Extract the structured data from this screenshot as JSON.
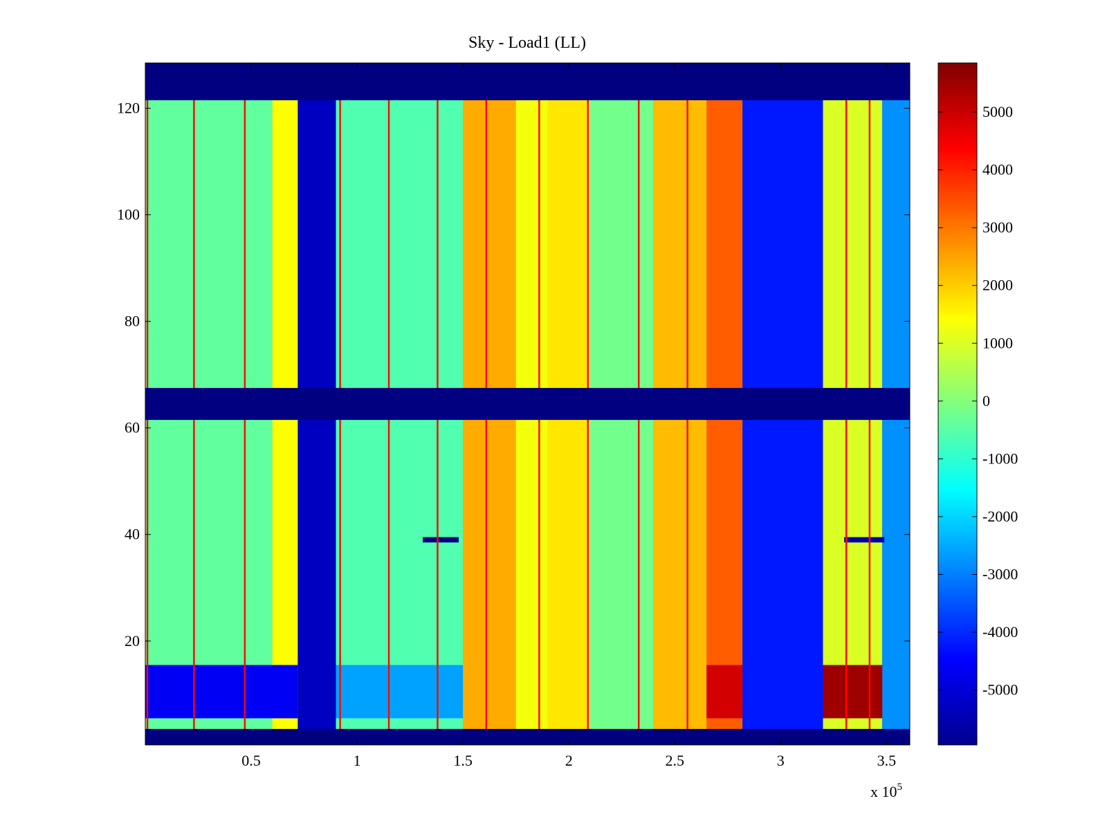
{
  "chart_data": {
    "type": "heatmap",
    "title": "Sky - Load1 (LL)",
    "xlabel": "",
    "ylabel": "",
    "x_range": [
      0,
      361000
    ],
    "y_range": [
      0.5,
      128.5
    ],
    "x_exponent_label": "x 10",
    "x_exponent_power": "5",
    "x_ticks": [
      {
        "value": 50000,
        "label": "0.5"
      },
      {
        "value": 100000,
        "label": "1"
      },
      {
        "value": 150000,
        "label": "1.5"
      },
      {
        "value": 200000,
        "label": "2"
      },
      {
        "value": 250000,
        "label": "2.5"
      },
      {
        "value": 300000,
        "label": "3"
      },
      {
        "value": 350000,
        "label": "3.5"
      }
    ],
    "y_ticks": [
      {
        "value": 20,
        "label": "20"
      },
      {
        "value": 40,
        "label": "40"
      },
      {
        "value": 60,
        "label": "60"
      },
      {
        "value": 80,
        "label": "80"
      },
      {
        "value": 100,
        "label": "100"
      },
      {
        "value": 120,
        "label": "120"
      }
    ],
    "colorbar": {
      "colormap": "jet",
      "range": [
        -5950,
        5850
      ],
      "ticks": [
        {
          "value": 5000,
          "label": "5000"
        },
        {
          "value": 4000,
          "label": "4000"
        },
        {
          "value": 3000,
          "label": "3000"
        },
        {
          "value": 2000,
          "label": "2000"
        },
        {
          "value": 1000,
          "label": "1000"
        },
        {
          "value": 0,
          "label": "0"
        },
        {
          "value": -1000,
          "label": "-1000"
        },
        {
          "value": -2000,
          "label": "-2000"
        },
        {
          "value": -3000,
          "label": "-3000"
        },
        {
          "value": -4000,
          "label": "-4000"
        },
        {
          "value": -5000,
          "label": "-5000"
        }
      ]
    },
    "masked_value": -6000,
    "masked_channel_ranges": [
      [
        0.5,
        3.5
      ],
      [
        61.5,
        67.5
      ],
      [
        121.5,
        128.5
      ]
    ],
    "column_bands": [
      {
        "x": [
          0,
          72000
        ],
        "value": -400
      },
      {
        "x": [
          60000,
          72000
        ],
        "value": 1400
      },
      {
        "x": [
          72000,
          90000
        ],
        "value": -5200
      },
      {
        "x": [
          90000,
          150000
        ],
        "value": -600
      },
      {
        "x": [
          150000,
          240000
        ],
        "value": 1300
      },
      {
        "x": [
          150000,
          175000
        ],
        "value": 2400
      },
      {
        "x": [
          190000,
          210000
        ],
        "value": 1700
      },
      {
        "x": [
          210000,
          240000
        ],
        "value": -200
      },
      {
        "x": [
          240000,
          282000
        ],
        "value": 2200
      },
      {
        "x": [
          265000,
          282000
        ],
        "value": 3300
      },
      {
        "x": [
          282000,
          320000
        ],
        "value": -4200
      },
      {
        "x": [
          320000,
          348000
        ],
        "value": 1000
      },
      {
        "x": [
          348000,
          361000
        ],
        "value": -2800
      }
    ],
    "highlight_rows": [
      {
        "y": [
          5.5,
          15.5
        ],
        "x": [
          0,
          72000
        ],
        "value": -4600
      },
      {
        "y": [
          5.5,
          15.5
        ],
        "x": [
          90000,
          150000
        ],
        "value": -2600
      },
      {
        "y": [
          5.5,
          15.5
        ],
        "x": [
          265000,
          282000
        ],
        "value": 4900
      },
      {
        "y": [
          5.5,
          15.5
        ],
        "x": [
          320000,
          348000
        ],
        "value": 5500
      },
      {
        "y": [
          38.5,
          39.5
        ],
        "x": [
          131000,
          148000
        ],
        "value": -6000
      },
      {
        "y": [
          38.5,
          39.5
        ],
        "x": [
          330000,
          349000
        ],
        "value": -5400
      }
    ],
    "red_streak_columns": [
      1000,
      23000,
      47000,
      92000,
      115000,
      138000,
      161000,
      186000,
      209000,
      233000,
      256000,
      331000,
      342000
    ]
  }
}
